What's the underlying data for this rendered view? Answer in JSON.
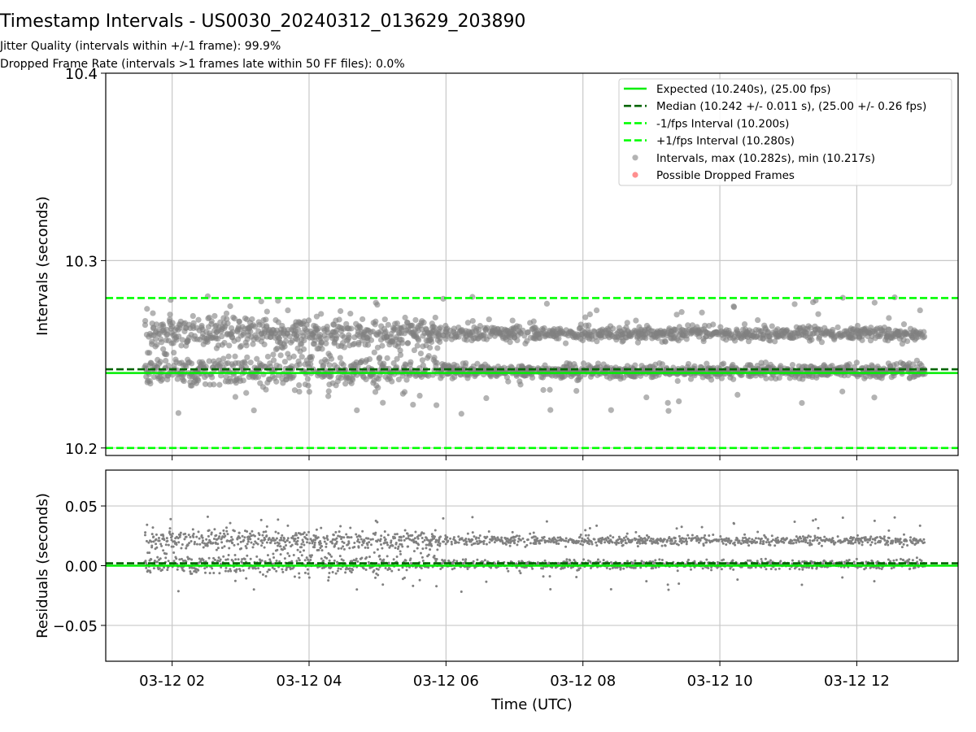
{
  "figure": {
    "title": "Timestamp Intervals - US0030_20240312_013629_203890",
    "subtitle_jitter": "Jitter Quality (intervals within +/-1 frame): 99.9%",
    "subtitle_dropped": "Dropped Frame Rate (intervals >1 frames late within 50 FF files): 0.0%"
  },
  "colors": {
    "expected": "#00ee00",
    "median": "#006400",
    "bounds": "#00ff00",
    "points": "#808080",
    "dropped": "#ff4444",
    "grid": "#c8c8c8"
  },
  "chart_data": [
    {
      "type": "scatter",
      "ylabel": "Intervals (seconds)",
      "ylim": [
        10.196,
        10.4
      ],
      "yticks": [
        10.2,
        10.3,
        10.4
      ],
      "ytick_labels": [
        "10.2",
        "10.3",
        "10.4"
      ],
      "xlim_hours": [
        1.03,
        13.48
      ],
      "xticks_hours": [
        2,
        4,
        6,
        8,
        10,
        12
      ],
      "grid": true,
      "legend_position": "upper right",
      "reference_lines": [
        {
          "name": "Expected (10.240s), (25.00 fps)",
          "value": 10.24,
          "style": "solid",
          "color": "#00ee00"
        },
        {
          "name": "Median (10.242 +/- 0.011 s), (25.00 +/- 0.26 fps)",
          "value": 10.242,
          "style": "dashed",
          "color": "#006400"
        },
        {
          "name": "-1/fps Interval (10.200s)",
          "value": 10.2,
          "style": "dashed",
          "color": "#00ff00"
        },
        {
          "name": "+1/fps Interval (10.280s)",
          "value": 10.28,
          "style": "dashed",
          "color": "#00ff00"
        }
      ],
      "scatter_series": [
        {
          "name": "Intervals, max (10.282s), min (10.217s)",
          "color": "#808080",
          "x_range_hours": [
            1.6,
            13.0
          ],
          "bands": [
            10.241,
            10.261
          ],
          "max": 10.282,
          "min": 10.217
        },
        {
          "name": "Possible Dropped Frames",
          "color": "#ff4444",
          "count": 0
        }
      ]
    },
    {
      "type": "scatter",
      "xlabel": "Time (UTC)",
      "ylabel": "Residuals (seconds)",
      "ylim": [
        -0.08,
        0.08
      ],
      "yticks": [
        0.05,
        0.0,
        -0.05
      ],
      "ytick_labels": [
        "0.05",
        "0.00",
        "−0.05"
      ],
      "xlim_hours": [
        1.03,
        13.48
      ],
      "xticks_hours": [
        2,
        4,
        6,
        8,
        10,
        12
      ],
      "xtick_labels": [
        "03-12 02",
        "03-12 04",
        "03-12 06",
        "03-12 08",
        "03-12 10",
        "03-12 12"
      ],
      "grid": true,
      "reference_lines": [
        {
          "value": 0.0,
          "style": "solid",
          "color": "#00ee00"
        },
        {
          "value": 0.002,
          "style": "dashed",
          "color": "#006400"
        }
      ],
      "scatter_series": [
        {
          "color": "#808080",
          "x_range_hours": [
            1.6,
            13.0
          ],
          "bands": [
            0.001,
            0.021
          ]
        }
      ]
    }
  ]
}
